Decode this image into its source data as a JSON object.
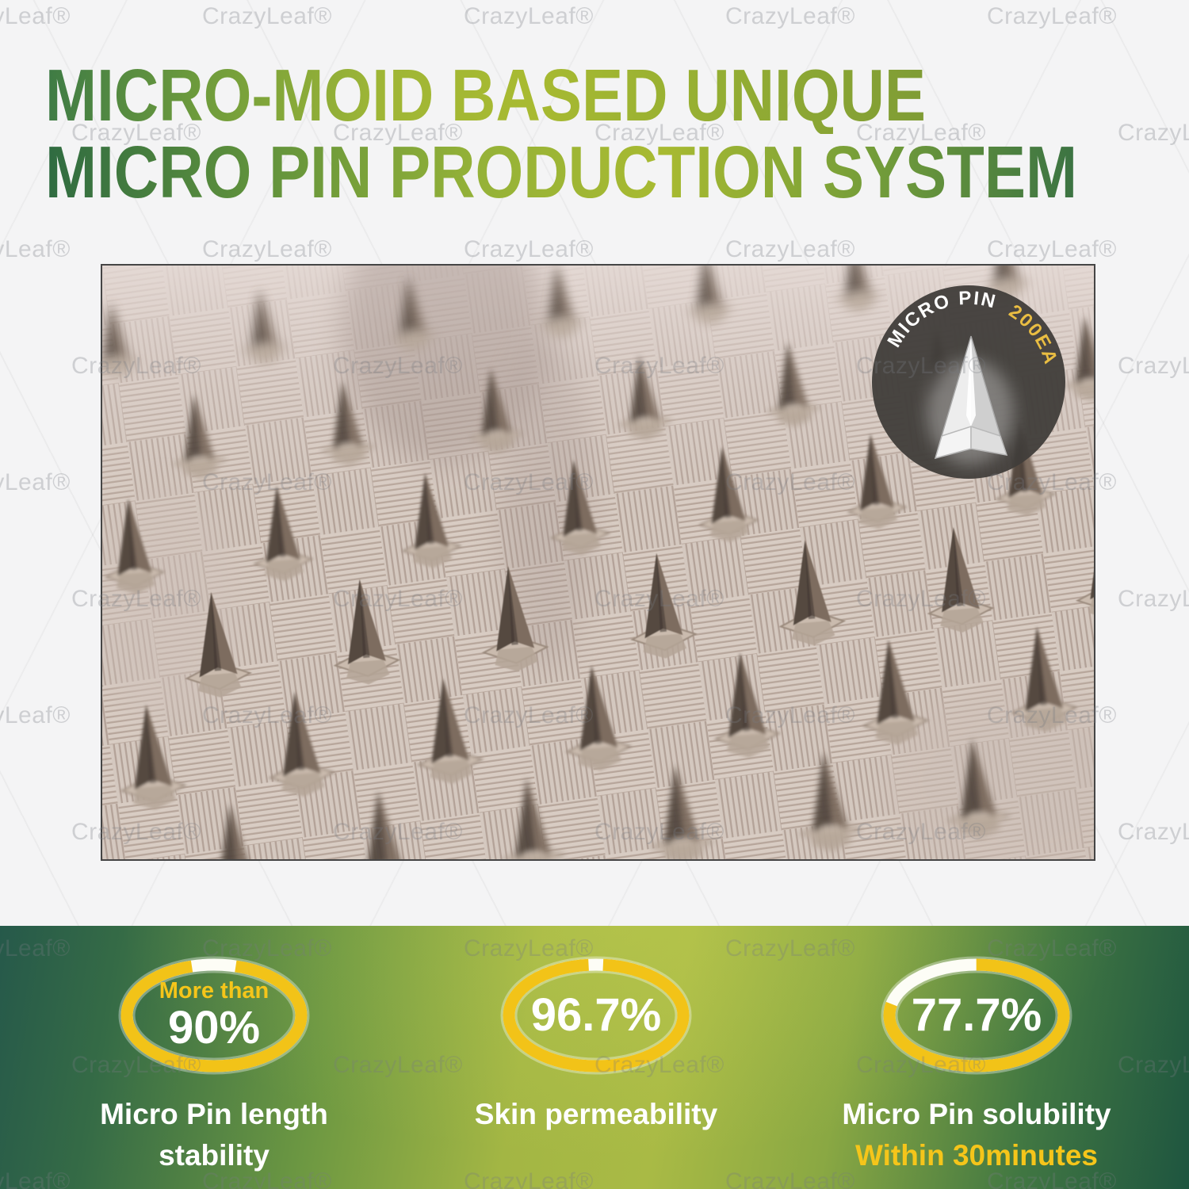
{
  "watermark": {
    "text": "CrazyLeaf®"
  },
  "title": {
    "line1": "MICRO-MOID BASED UNIQUE",
    "line2": "MICRO PIN PRODUCTION SYSTEM"
  },
  "badge": {
    "label": "MICRO PIN",
    "count": "200EA"
  },
  "stats": [
    {
      "prefix": "More than",
      "value": "90%",
      "percent": 90,
      "label_lines": [
        "Micro Pin length",
        "stability"
      ],
      "sublabel": ""
    },
    {
      "prefix": "",
      "value": "96.7%",
      "percent": 96.7,
      "label_lines": [
        "Skin permeability"
      ],
      "sublabel": ""
    },
    {
      "prefix": "",
      "value": "77.7%",
      "percent": 77.7,
      "label_lines": [
        "Micro Pin solubility"
      ],
      "sublabel": "Within 30minutes"
    }
  ],
  "colors": {
    "page-bg": "#f4f4f5",
    "ring-yellow": "#f2c318",
    "accent-yellow": "#f5c51a",
    "stat-white": "#ffffff",
    "badge-bg": "#403d3a",
    "badge-count-yellow": "#e9bd42",
    "band-dark-left": "#26594a",
    "band-bright": "#a9ba45",
    "band-dark-right": "#1e5540",
    "title-dark-green": "#2f6b41",
    "title-light-green": "#a8ba31",
    "photo-bg": "#d8ccc3",
    "pin-dark": "#544840"
  }
}
